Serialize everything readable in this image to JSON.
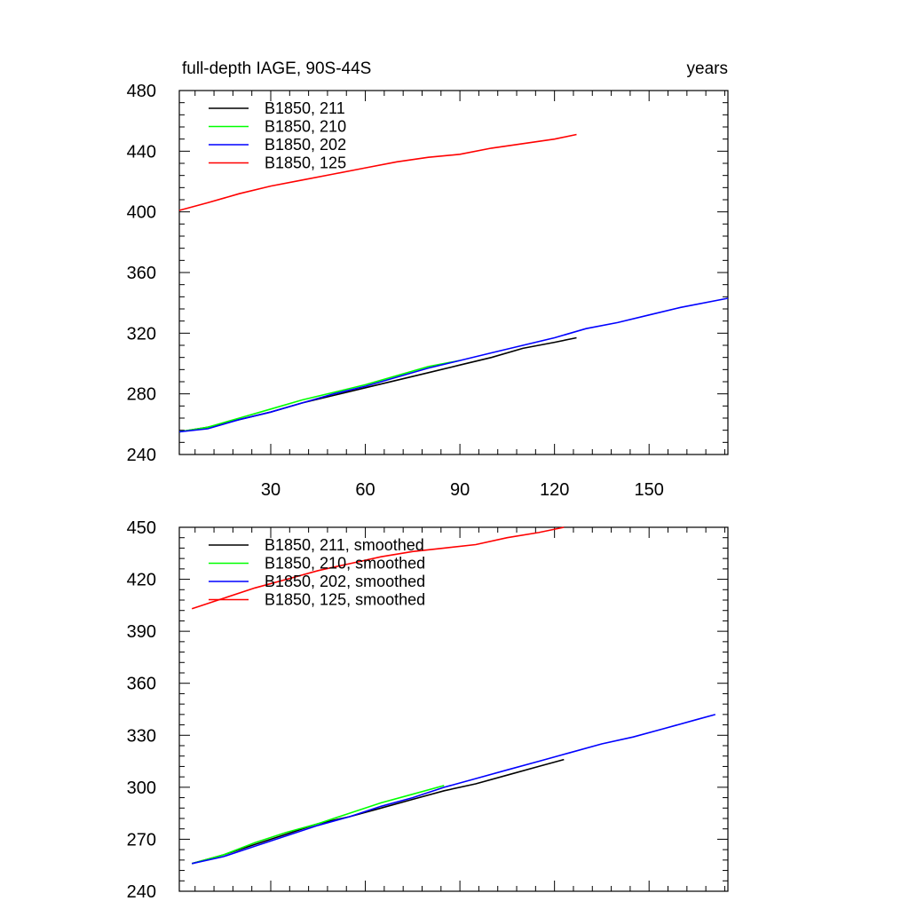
{
  "chart_data": [
    {
      "type": "line",
      "title": "full-depth IAGE, 90S-44S",
      "units": "years",
      "xlim": [
        1,
        175
      ],
      "ylim": [
        240,
        480
      ],
      "xticks": [
        30,
        60,
        90,
        120,
        150
      ],
      "xtick_labels": [
        "30",
        "60",
        "90",
        "120",
        "150"
      ],
      "yticks": [
        240,
        280,
        320,
        360,
        400,
        440,
        480
      ],
      "ytick_labels": [
        "240",
        "280",
        "320",
        "360",
        "400",
        "440",
        "480"
      ],
      "legend_position": "top-left",
      "series": [
        {
          "name": "B1850, 211",
          "color": "#000000",
          "x": [
            1,
            10,
            20,
            30,
            40,
            50,
            60,
            70,
            80,
            90,
            100,
            110,
            120,
            127
          ],
          "y": [
            255,
            258,
            263,
            268,
            274,
            279,
            284,
            289,
            294,
            299,
            304,
            310,
            314,
            317
          ]
        },
        {
          "name": "B1850, 210",
          "color": "#00ff00",
          "x": [
            1,
            10,
            20,
            30,
            40,
            50,
            60,
            70,
            80,
            90
          ],
          "y": [
            255,
            258,
            264,
            270,
            276,
            281,
            286,
            292,
            298,
            302
          ]
        },
        {
          "name": "B1850, 202",
          "color": "#0000ff",
          "x": [
            1,
            10,
            20,
            30,
            40,
            50,
            60,
            70,
            80,
            90,
            100,
            110,
            120,
            130,
            140,
            150,
            160,
            175
          ],
          "y": [
            255,
            257,
            263,
            268,
            274,
            280,
            285,
            291,
            297,
            302,
            307,
            312,
            317,
            323,
            327,
            332,
            337,
            343
          ]
        },
        {
          "name": "B1850, 125",
          "color": "#ff0000",
          "x": [
            1,
            10,
            20,
            30,
            40,
            50,
            60,
            70,
            80,
            90,
            100,
            110,
            120,
            127
          ],
          "y": [
            401,
            406,
            412,
            417,
            421,
            425,
            429,
            433,
            436,
            438,
            442,
            445,
            448,
            451
          ]
        }
      ]
    },
    {
      "type": "line",
      "title": "",
      "xlim": [
        1,
        175
      ],
      "ylim": [
        240,
        450
      ],
      "yticks": [
        240,
        270,
        300,
        330,
        360,
        390,
        420,
        450
      ],
      "ytick_labels": [
        "240",
        "270",
        "300",
        "330",
        "360",
        "390",
        "420",
        "450"
      ],
      "xticks": [
        30,
        60,
        90,
        120,
        150
      ],
      "legend_position": "top-left",
      "series": [
        {
          "name": "B1850, 211, smoothed",
          "color": "#000000",
          "x": [
            5,
            15,
            25,
            35,
            45,
            55,
            65,
            75,
            85,
            95,
            105,
            115,
            123
          ],
          "y": [
            256,
            261,
            267,
            273,
            279,
            283,
            288,
            293,
            298,
            302,
            307,
            312,
            316
          ]
        },
        {
          "name": "B1850, 210, smoothed",
          "color": "#00ff00",
          "x": [
            5,
            15,
            25,
            35,
            45,
            55,
            65,
            75,
            85
          ],
          "y": [
            256,
            261,
            268,
            274,
            279,
            285,
            291,
            296,
            301
          ]
        },
        {
          "name": "B1850, 202, smoothed",
          "color": "#0000ff",
          "x": [
            5,
            15,
            25,
            35,
            45,
            55,
            65,
            75,
            85,
            95,
            105,
            115,
            125,
            135,
            145,
            155,
            165,
            171
          ],
          "y": [
            256,
            260,
            266,
            272,
            278,
            283,
            289,
            294,
            300,
            305,
            310,
            315,
            320,
            325,
            329,
            334,
            339,
            342
          ]
        },
        {
          "name": "B1850, 125, smoothed",
          "color": "#ff0000",
          "x": [
            5,
            15,
            25,
            35,
            45,
            55,
            65,
            75,
            85,
            95,
            105,
            115,
            123
          ],
          "y": [
            403,
            409,
            415,
            420,
            425,
            429,
            433,
            436,
            438,
            440,
            444,
            447,
            450
          ]
        }
      ]
    }
  ]
}
